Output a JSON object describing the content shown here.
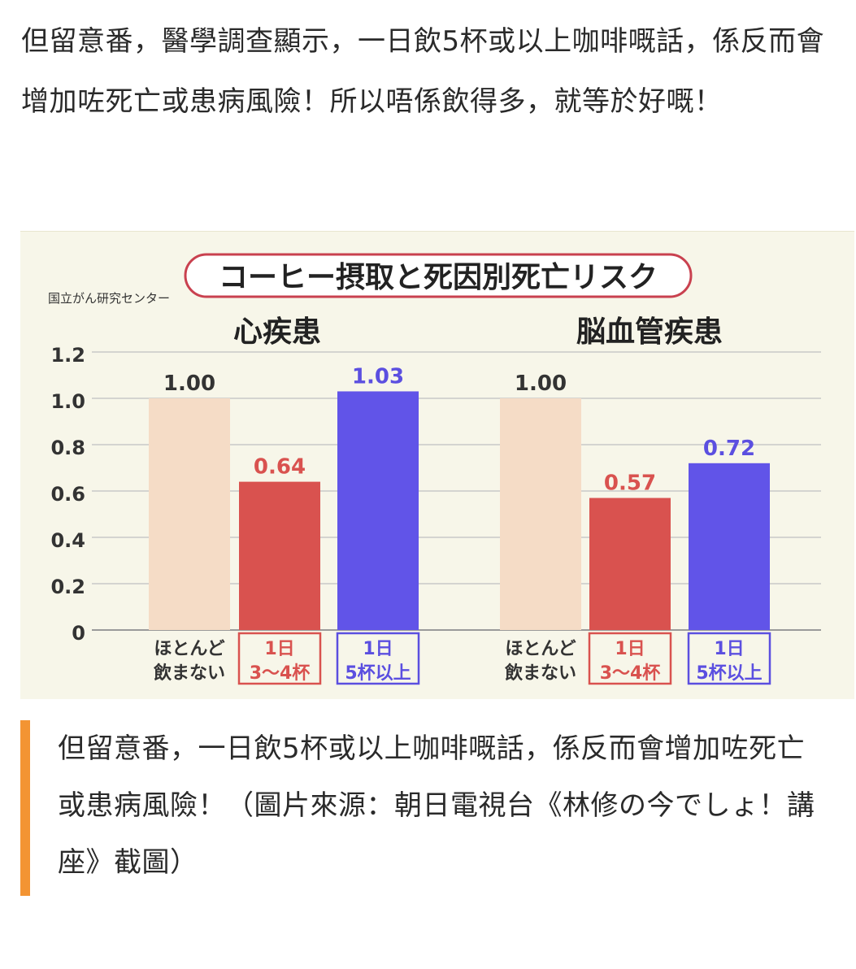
{
  "article": {
    "paragraph": "但留意番，醫學調查顯示，一日飲5杯或以上咖啡嘅話，係反而會增加咗死亡或患病風險！所以唔係飲得多，就等於好嘅！"
  },
  "figure": {
    "source_label": "国立がん研究センター",
    "title": "コーヒー摂取と死因別死亡リスク"
  },
  "chart_data": [
    {
      "type": "bar",
      "title": "心疾患",
      "categories": [
        "ほとんど\n飲まない",
        "1日\n3〜4杯",
        "1日\n5杯以上"
      ],
      "values": [
        1.0,
        0.64,
        1.03
      ],
      "value_labels": [
        "1.00",
        "0.64",
        "1.03"
      ],
      "colors": [
        "#f5dcc6",
        "#d9524f",
        "#6154e8"
      ],
      "label_colors": [
        "#333333",
        "#d9524f",
        "#5b4fe0"
      ],
      "category_box_colors": [
        "none",
        "#d9524f",
        "#5b4fe0"
      ],
      "ylim": [
        0,
        1.2
      ],
      "yticks": [
        "0",
        "0.2",
        "0.4",
        "0.6",
        "0.8",
        "1.0",
        "1.2"
      ],
      "grid": true
    },
    {
      "type": "bar",
      "title": "脳血管疾患",
      "categories": [
        "ほとんど\n飲まない",
        "1日\n3〜4杯",
        "1日\n5杯以上"
      ],
      "values": [
        1.0,
        0.57,
        0.72
      ],
      "value_labels": [
        "1.00",
        "0.57",
        "0.72"
      ],
      "colors": [
        "#f5dcc6",
        "#d9524f",
        "#6154e8"
      ],
      "label_colors": [
        "#333333",
        "#d9524f",
        "#5b4fe0"
      ],
      "category_box_colors": [
        "none",
        "#d9524f",
        "#5b4fe0"
      ],
      "ylim": [
        0,
        1.2
      ],
      "grid": true
    }
  ],
  "caption": {
    "text": "但留意番，一日飲5杯或以上咖啡嘅話，係反而會增加咗死亡或患病風險！（圖片來源：朝日電視台《林修の今でしょ！講座》截圖）",
    "accent_color": "#f39433"
  }
}
